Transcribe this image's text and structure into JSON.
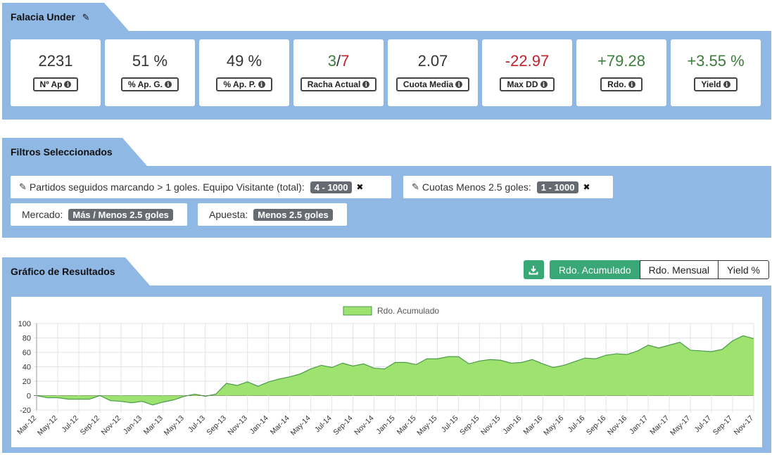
{
  "stats": {
    "title": "Falacia Under",
    "cards": [
      {
        "value": "2231",
        "label": "Nº Ap"
      },
      {
        "value": "51 %",
        "label": "% Ap. G."
      },
      {
        "value": "49 %",
        "label": "% Ap. P."
      },
      {
        "value_green": "3",
        "value_sep": "/",
        "value_red": "7",
        "label": "Racha Actual"
      },
      {
        "value": "2.07",
        "label": "Cuota Media"
      },
      {
        "value": "-22.97",
        "label": "Max DD"
      },
      {
        "value": "+79.28",
        "label": "Rdo."
      },
      {
        "value": "+3.55 %",
        "label": "Yield"
      }
    ],
    "colors": {
      "positive": "#3c7d3c",
      "negative": "#c0212b"
    }
  },
  "filters": {
    "title": "Filtros Seleccionados",
    "items": [
      {
        "text": "Partidos seguidos marcando > 1 goles. Equipo Visitante (total):",
        "value": "4 - 1000"
      },
      {
        "text": "Cuotas Menos 2.5 goles:",
        "value": "1 - 1000"
      },
      {
        "text": "Mercado:",
        "value": "Más / Menos 2.5 goles"
      },
      {
        "text": "Apuesta:",
        "value": "Menos 2.5 goles"
      }
    ]
  },
  "chart_section": {
    "title": "Gráfico de Resultados",
    "buttons": [
      "Rdo. Acumulado",
      "Rdo. Mensual",
      "Yield %"
    ],
    "active_button": "Rdo. Acumulado",
    "accent": "#3aa776"
  },
  "chart_data": {
    "type": "area",
    "series": [
      {
        "name": "Rdo. Acumulado",
        "color": "#9ee270",
        "line_color": "#4a9a4a",
        "values": [
          0,
          -3,
          -3,
          -5,
          -5,
          -5,
          0,
          -7,
          -8,
          -10,
          -8,
          -13,
          -9,
          -6,
          -1,
          2,
          -1,
          2,
          17,
          14,
          19,
          13,
          19,
          23,
          26,
          30,
          37,
          42,
          39,
          45,
          41,
          44,
          38,
          37,
          46,
          46,
          43,
          51,
          51,
          54,
          54,
          44,
          48,
          50,
          49,
          45,
          46,
          50,
          44,
          39,
          42,
          47,
          52,
          51,
          56,
          58,
          57,
          62,
          70,
          66,
          70,
          74,
          63,
          62,
          61,
          64,
          76,
          83,
          79
        ]
      }
    ],
    "x_tick_labels": [
      "Mar-12",
      "May-12",
      "Jul-12",
      "Sep-12",
      "Nov-12",
      "Jan-13",
      "Mar-13",
      "May-13",
      "Jul-13",
      "Sep-13",
      "Nov-13",
      "Jan-14",
      "Mar-14",
      "May-14",
      "Jul-14",
      "Sep-14",
      "Nov-14",
      "Jan-15",
      "Mar-15",
      "May-15",
      "Jul-15",
      "Sep-15",
      "Nov-15",
      "Jan-16",
      "Mar-16",
      "May-16",
      "Jul-16",
      "Sep-16",
      "Nov-16",
      "Jan-17",
      "Mar-17",
      "May-17",
      "Jul-17",
      "Sep-17",
      "Nov-17"
    ],
    "y_ticks": [
      -20,
      0,
      20,
      40,
      60,
      80,
      100
    ],
    "ylim": [
      -20,
      100
    ],
    "legend": "top-center",
    "grid": true
  }
}
